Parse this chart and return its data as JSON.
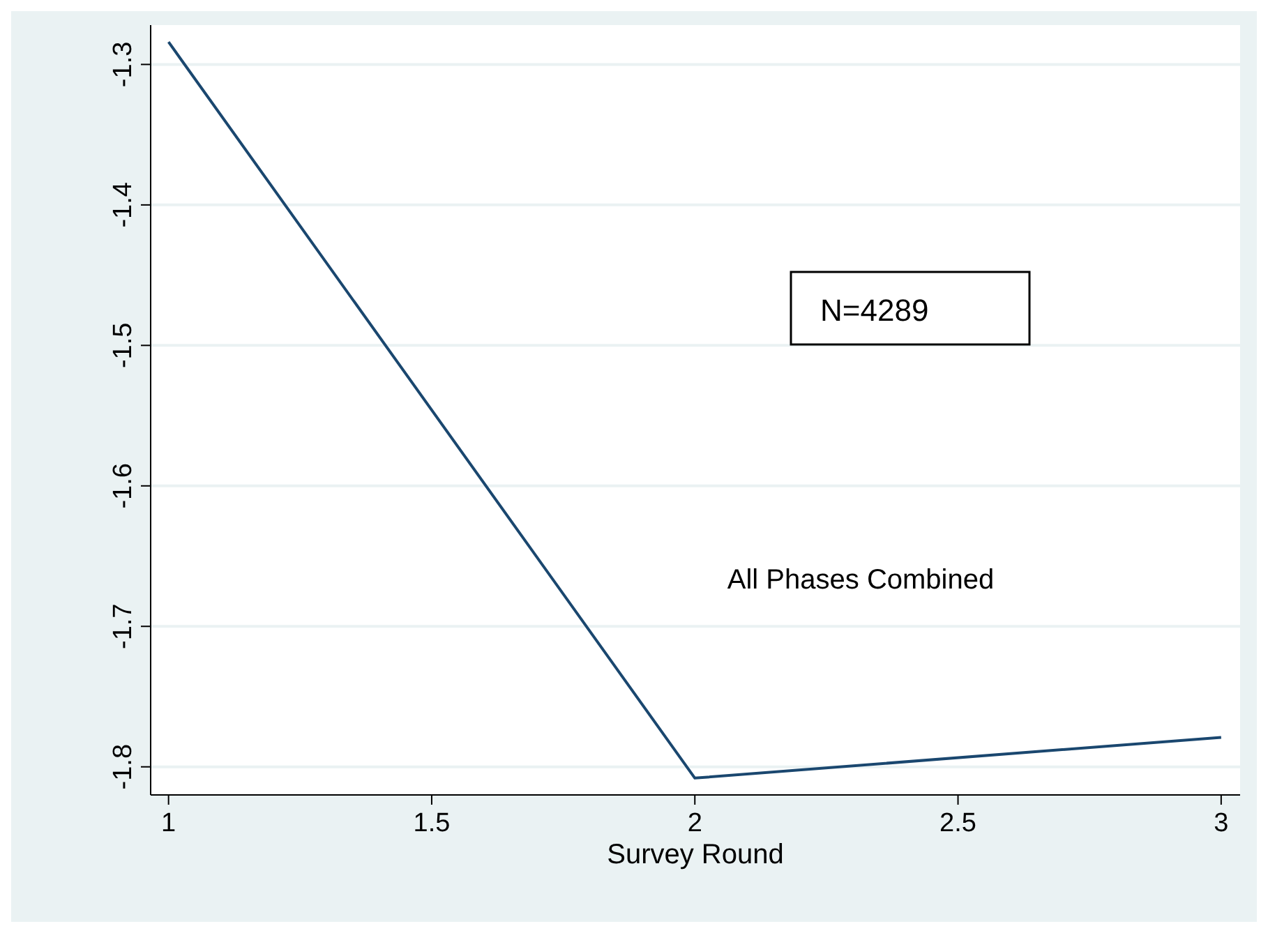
{
  "chart_data": {
    "type": "line",
    "xlabel": "Survey Round",
    "x": [
      1,
      2,
      3
    ],
    "series": [
      {
        "color": "#1a476f",
        "values": [
          -1.284,
          -1.808,
          -1.779
        ]
      }
    ],
    "xlim": [
      0.966,
      3.036
    ],
    "xticks": [
      1,
      1.5,
      2,
      2.5,
      3
    ],
    "ylim": [
      -1.82,
      -1.272
    ],
    "yticks": [
      -1.8,
      -1.7,
      -1.6,
      -1.5,
      -1.4,
      -1.3
    ],
    "grid": "y",
    "marker": "none",
    "line_style": "solid",
    "annotations": [
      "N=4289",
      "All Phases Combined"
    ]
  }
}
